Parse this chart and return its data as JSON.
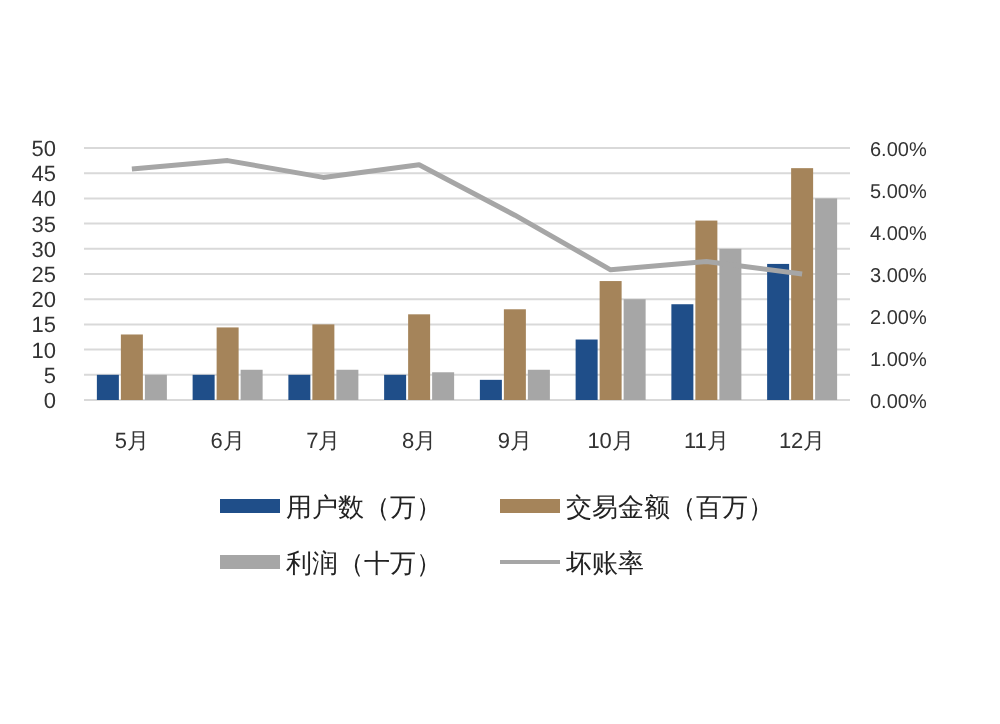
{
  "chart_data": {
    "type": "bar",
    "categories": [
      "5月",
      "6月",
      "7月",
      "8月",
      "9月",
      "10月",
      "11月",
      "12月"
    ],
    "series": [
      {
        "name": "用户数（万）",
        "color": "#1f4e89",
        "values": [
          5,
          5,
          5,
          5,
          4,
          12,
          19,
          27
        ]
      },
      {
        "name": "交易金额（百万）",
        "color": "#a5845a",
        "values": [
          13,
          14.4,
          15,
          17,
          18,
          23.6,
          35.6,
          46
        ]
      },
      {
        "name": "利润（十万）",
        "color": "#a6a6a6",
        "values": [
          5,
          6,
          6,
          5.5,
          6,
          20,
          30,
          40
        ]
      },
      {
        "name": "坏账率",
        "type": "line",
        "axis": "y2",
        "color": "#a6a6a6",
        "values": [
          5.5,
          5.7,
          5.3,
          5.6,
          4.4,
          3.1,
          3.3,
          3.0
        ]
      }
    ],
    "ylim": [
      0,
      50
    ],
    "yticks": [
      0,
      5,
      10,
      15,
      20,
      25,
      30,
      35,
      40,
      45,
      50
    ],
    "y2lim": [
      0,
      6
    ],
    "y2ticks": [
      {
        "value": 0,
        "label": "0.00%"
      },
      {
        "value": 1,
        "label": "1.00%"
      },
      {
        "value": 2,
        "label": "2.00%"
      },
      {
        "value": 3,
        "label": "3.00%"
      },
      {
        "value": 4,
        "label": "4.00%"
      },
      {
        "value": 5,
        "label": "5.00%"
      },
      {
        "value": 6,
        "label": "6.00%"
      }
    ],
    "grid": "y",
    "legend": "bottom"
  }
}
